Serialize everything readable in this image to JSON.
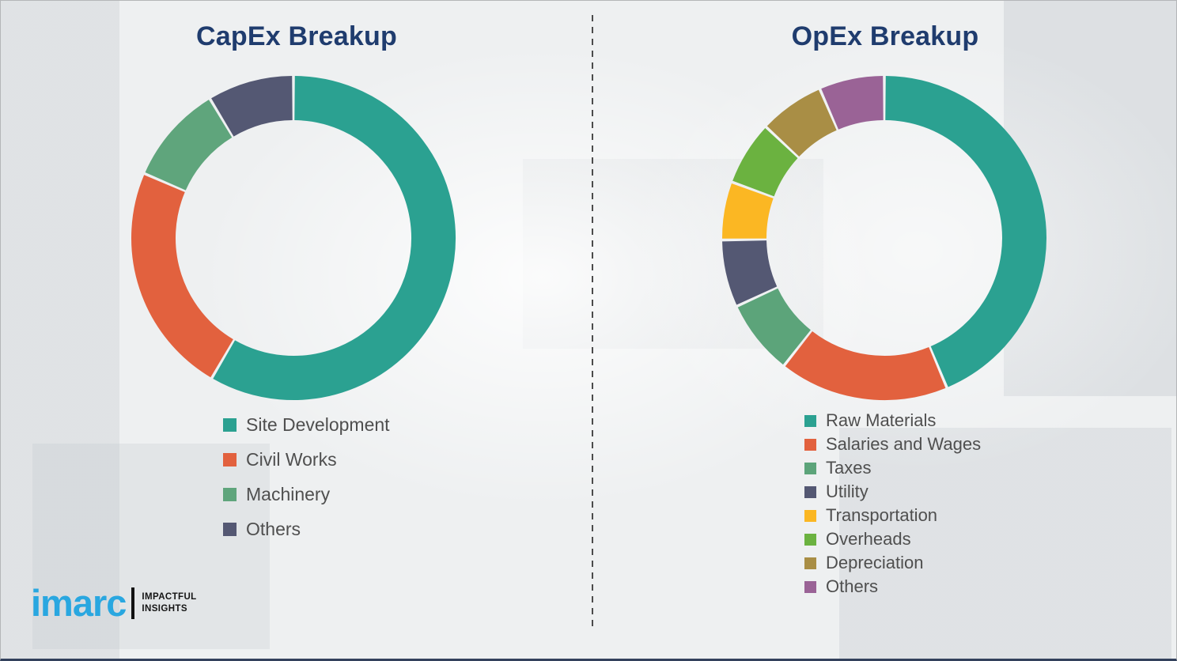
{
  "page": {
    "background_color": "#eef0f1",
    "title_color": "#1f3c6e",
    "legend_text_color": "#4f4f4f",
    "divider_color": "#4b4b4b"
  },
  "chart_data": [
    {
      "type": "pie",
      "subtype": "donut",
      "title": "CapEx Breakup",
      "legend_position": "bottom-left",
      "units": "percent (estimated from arc angles; no value labels shown)",
      "segments": [
        {
          "label": "Site Development",
          "value": 58.4,
          "color": "#2BA191"
        },
        {
          "label": "Civil Works",
          "value": 23.1,
          "color": "#E2613E"
        },
        {
          "label": "Machinery",
          "value": 9.9,
          "color": "#5FA57C"
        },
        {
          "label": "Others",
          "value": 8.6,
          "color": "#545873"
        }
      ]
    },
    {
      "type": "pie",
      "subtype": "donut",
      "title": "OpEx Breakup",
      "legend_position": "bottom-left",
      "units": "percent (estimated from arc angles; no value labels shown)",
      "segments": [
        {
          "label": "Raw Materials",
          "value": 43.7,
          "color": "#2BA191"
        },
        {
          "label": "Salaries and Wages",
          "value": 16.9,
          "color": "#E2613E"
        },
        {
          "label": "Taxes",
          "value": 7.5,
          "color": "#5CA47A"
        },
        {
          "label": "Utility",
          "value": 6.7,
          "color": "#545873"
        },
        {
          "label": "Transportation",
          "value": 5.8,
          "color": "#FBB723"
        },
        {
          "label": "Overheads",
          "value": 6.4,
          "color": "#6BB240"
        },
        {
          "label": "Depreciation",
          "value": 6.5,
          "color": "#A98E45"
        },
        {
          "label": "Others",
          "value": 6.5,
          "color": "#9A6396"
        }
      ]
    }
  ],
  "logo": {
    "brand": "imarc",
    "brand_color": "#29A7E0",
    "tagline": [
      "IMPACTFUL",
      "INSIGHTS"
    ]
  }
}
